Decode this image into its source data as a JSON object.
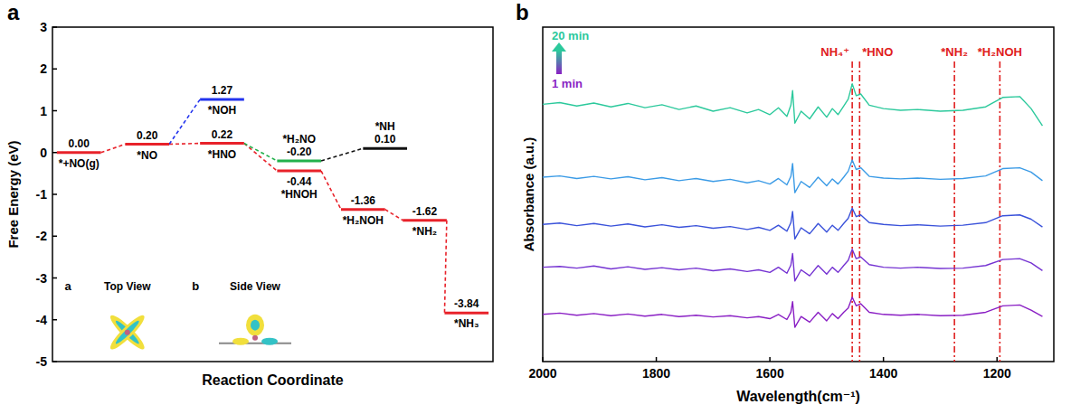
{
  "chart_data": [
    {
      "type": "energy_diagram",
      "panel_label": "a",
      "y_label": "Free Energy (eV)",
      "x_label": "Reaction Coordinate",
      "ylim": [
        -5,
        3
      ],
      "yticks": [
        -5,
        -4,
        -3,
        -2,
        -1,
        0,
        1,
        2,
        3
      ],
      "xlim": [
        0,
        10
      ],
      "tick_labels": "y",
      "levels": [
        {
          "label": "*+NO(g)",
          "value": 0.0,
          "value_label": "0.00",
          "x": 0.6,
          "color": "#e8222a"
        },
        {
          "label": "*NO",
          "value": 0.2,
          "value_label": "0.20",
          "x": 2.15,
          "color": "#e8222a"
        },
        {
          "label": "*HNO",
          "value": 0.22,
          "value_label": "0.22",
          "x": 3.85,
          "color": "#e8222a"
        },
        {
          "label": "*NOH",
          "value": 1.27,
          "value_label": "1.27",
          "x": 3.85,
          "color": "#2233ee"
        },
        {
          "label": "*HNOH",
          "value": -0.44,
          "value_label": "-0.44",
          "x": 5.6,
          "color": "#e8222a"
        },
        {
          "label": "*H₂NO",
          "value": -0.2,
          "value_label": "-0.20",
          "x": 5.6,
          "color": "#22b14c"
        },
        {
          "label": "*NH",
          "value": 0.1,
          "value_label": "0.10",
          "x": 7.55,
          "color": "#111111"
        },
        {
          "label": "*H₂NOH",
          "value": -1.36,
          "value_label": "-1.36",
          "x": 7.05,
          "color": "#e8222a"
        },
        {
          "label": "*NH₂",
          "value": -1.62,
          "value_label": "-1.62",
          "x": 8.45,
          "color": "#e8222a"
        },
        {
          "label": "*NH₃",
          "value": -3.84,
          "value_label": "-3.84",
          "x": 9.4,
          "color": "#e8222a"
        }
      ],
      "connections": [
        {
          "from": 0,
          "to": 1,
          "color": "#e8222a"
        },
        {
          "from": 1,
          "to": 2,
          "color": "#e8222a"
        },
        {
          "from": 1,
          "to": 3,
          "color": "#2233ee"
        },
        {
          "from": 2,
          "to": 4,
          "color": "#e8222a"
        },
        {
          "from": 2,
          "to": 5,
          "color": "#22b14c"
        },
        {
          "from": 5,
          "to": 6,
          "color": "#111111"
        },
        {
          "from": 4,
          "to": 7,
          "color": "#e8222a"
        },
        {
          "from": 7,
          "to": 8,
          "color": "#e8222a"
        },
        {
          "from": 8,
          "to": 9,
          "color": "#e8222a"
        }
      ],
      "insets": [
        {
          "letter": "a",
          "title": "Top View"
        },
        {
          "letter": "b",
          "title": "Side View"
        }
      ]
    },
    {
      "type": "line",
      "panel_label": "b",
      "y_label": "Absorbance (a.u.)",
      "x_label": "Wavelength(cm⁻¹)",
      "xlim": [
        2000,
        1100
      ],
      "xticks": [
        2000,
        1800,
        1600,
        1400,
        1200
      ],
      "ylim": [
        0,
        7.8
      ],
      "tick_labels": "x",
      "legend": "upper left",
      "x": [
        2000,
        1970,
        1940,
        1910,
        1880,
        1850,
        1820,
        1790,
        1760,
        1730,
        1700,
        1670,
        1640,
        1620,
        1600,
        1585,
        1570,
        1563,
        1560,
        1556,
        1545,
        1530,
        1515,
        1500,
        1490,
        1480,
        1470,
        1462,
        1455,
        1448,
        1440,
        1425,
        1400,
        1370,
        1340,
        1300,
        1260,
        1220,
        1190,
        1160,
        1140,
        1120
      ],
      "series": [
        {
          "name": "1 min",
          "color": "#8a1fc4",
          "values": [
            1.1,
            1.13,
            1.08,
            1.12,
            1.07,
            1.11,
            1.06,
            1.1,
            1.05,
            1.08,
            1.04,
            1.07,
            1.02,
            1.05,
            1.0,
            1.1,
            0.98,
            1.15,
            1.4,
            0.8,
            1.05,
            0.92,
            1.15,
            0.95,
            1.12,
            1.0,
            1.15,
            1.25,
            1.5,
            1.3,
            1.35,
            1.15,
            1.1,
            1.08,
            1.1,
            1.07,
            1.08,
            1.15,
            1.3,
            1.32,
            1.2,
            1.05
          ]
        },
        {
          "color": "#7533d2",
          "values": [
            2.2,
            2.22,
            2.18,
            2.23,
            2.16,
            2.21,
            2.15,
            2.19,
            2.14,
            2.18,
            2.12,
            2.16,
            2.1,
            2.14,
            2.08,
            2.2,
            2.06,
            2.25,
            2.52,
            1.88,
            2.14,
            2.0,
            2.24,
            2.04,
            2.2,
            2.08,
            2.24,
            2.36,
            2.62,
            2.4,
            2.44,
            2.26,
            2.2,
            2.18,
            2.2,
            2.17,
            2.18,
            2.24,
            2.38,
            2.4,
            2.3,
            2.12
          ]
        },
        {
          "color": "#3a52da",
          "values": [
            3.2,
            3.23,
            3.17,
            3.22,
            3.16,
            3.21,
            3.14,
            3.19,
            3.13,
            3.17,
            3.11,
            3.15,
            3.08,
            3.13,
            3.06,
            3.18,
            3.04,
            3.24,
            3.5,
            2.86,
            3.12,
            2.98,
            3.22,
            3.02,
            3.18,
            3.06,
            3.22,
            3.34,
            3.58,
            3.38,
            3.42,
            3.24,
            3.2,
            3.17,
            3.19,
            3.16,
            3.18,
            3.24,
            3.4,
            3.42,
            3.32,
            3.14
          ]
        },
        {
          "color": "#3b9be6",
          "values": [
            4.3,
            4.33,
            4.27,
            4.32,
            4.26,
            4.31,
            4.24,
            4.29,
            4.22,
            4.27,
            4.2,
            4.25,
            4.17,
            4.22,
            4.14,
            4.27,
            4.12,
            4.32,
            4.62,
            3.94,
            4.2,
            4.06,
            4.3,
            4.1,
            4.26,
            4.14,
            4.3,
            4.44,
            4.7,
            4.48,
            4.52,
            4.32,
            4.28,
            4.26,
            4.28,
            4.25,
            4.27,
            4.33,
            4.5,
            4.52,
            4.42,
            4.22
          ]
        },
        {
          "name": "20 min",
          "color": "#2cc99c",
          "values": [
            6.0,
            6.04,
            5.96,
            6.03,
            5.94,
            6.02,
            5.92,
            5.99,
            5.88,
            5.96,
            5.84,
            5.92,
            5.8,
            5.88,
            5.76,
            5.92,
            5.72,
            5.98,
            6.32,
            5.56,
            5.84,
            5.66,
            5.94,
            5.7,
            5.9,
            5.76,
            5.96,
            6.12,
            6.48,
            6.2,
            6.24,
            5.98,
            5.9,
            5.86,
            5.88,
            5.84,
            5.86,
            5.94,
            6.16,
            6.18,
            5.9,
            5.5
          ]
        }
      ],
      "annotations": [
        {
          "x": 1455,
          "label": "NH₄⁺"
        },
        {
          "x": 1442,
          "label": "*HNO"
        },
        {
          "x": 1275,
          "label": "*NH₂"
        },
        {
          "x": 1195,
          "label": "*H₂NOH"
        }
      ],
      "annotation_color": "#e02020"
    }
  ]
}
